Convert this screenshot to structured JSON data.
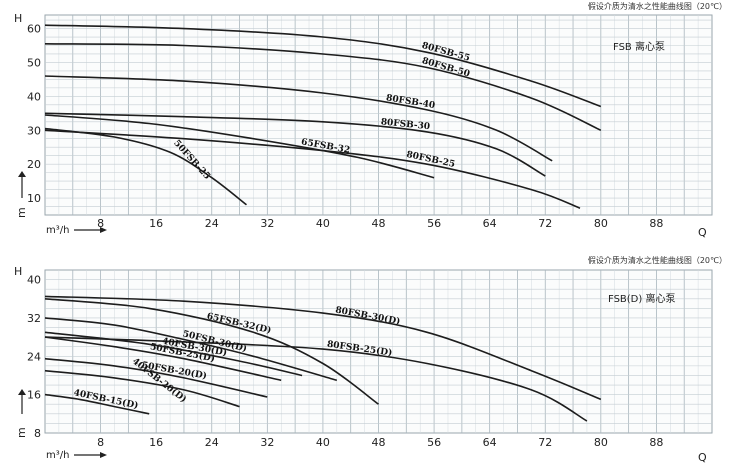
{
  "chart_data": [
    {
      "type": "line",
      "caption": "假设介质为清水之性能曲线图（20℃）",
      "title": "FSB 离心泵",
      "ylabel": "H",
      "yunit": "m",
      "xlabel": "Q",
      "xunit": "m³/h",
      "grid": true,
      "xlim": [
        0,
        96
      ],
      "ylim": [
        5,
        64
      ],
      "x_ticks": [
        8,
        16,
        24,
        32,
        40,
        48,
        56,
        64,
        72,
        80,
        88
      ],
      "y_ticks": [
        10,
        20,
        30,
        40,
        50,
        60
      ],
      "series": [
        {
          "name": "80FSB-55",
          "x": [
            0,
            20,
            40,
            55,
            70,
            80
          ],
          "y": [
            61,
            60,
            57.5,
            53,
            44.5,
            37
          ]
        },
        {
          "name": "80FSB-50",
          "x": [
            0,
            20,
            40,
            55,
            70,
            80
          ],
          "y": [
            55.5,
            55,
            52.5,
            48.5,
            39.5,
            30
          ]
        },
        {
          "name": "80FSB-40",
          "x": [
            0,
            20,
            40,
            55,
            65,
            73
          ],
          "y": [
            46,
            44.5,
            41,
            36,
            30,
            21
          ]
        },
        {
          "name": "80FSB-30",
          "x": [
            0,
            20,
            40,
            55,
            65,
            72
          ],
          "y": [
            35,
            34,
            32.5,
            29.5,
            24.5,
            16.5
          ]
        },
        {
          "name": "65FSB-32",
          "x": [
            0,
            15,
            30,
            45,
            56
          ],
          "y": [
            34.5,
            32,
            27.5,
            22,
            16
          ]
        },
        {
          "name": "80FSB-25",
          "x": [
            0,
            20,
            40,
            55,
            70,
            77
          ],
          "y": [
            30,
            27.5,
            24,
            20,
            12.5,
            7
          ]
        },
        {
          "name": "50FSB-25",
          "x": [
            0,
            10,
            18,
            24,
            29
          ],
          "y": [
            30.5,
            28,
            23.5,
            16,
            8
          ]
        }
      ]
    },
    {
      "type": "line",
      "caption": "假设介质为清水之性能曲线图（20℃）",
      "title": "FSB(D) 离心泵",
      "ylabel": "H",
      "yunit": "m",
      "xlabel": "Q",
      "xunit": "m³/h",
      "grid": true,
      "xlim": [
        0,
        96
      ],
      "ylim": [
        8,
        42
      ],
      "x_ticks": [
        8,
        16,
        24,
        32,
        40,
        48,
        56,
        64,
        72,
        80,
        88
      ],
      "y_ticks": [
        8,
        16,
        24,
        32,
        40
      ],
      "series": [
        {
          "name": "80FSB-30(D)",
          "x": [
            0,
            20,
            40,
            55,
            70,
            80
          ],
          "y": [
            36.5,
            35.5,
            33,
            29,
            21,
            15
          ]
        },
        {
          "name": "65FSB-32(D)",
          "x": [
            0,
            15,
            30,
            40,
            48
          ],
          "y": [
            36,
            34,
            29,
            22.5,
            14
          ]
        },
        {
          "name": "80FSB-25(D)",
          "x": [
            0,
            20,
            40,
            55,
            70,
            78
          ],
          "y": [
            28,
            27,
            25.5,
            22.5,
            17,
            10.5
          ]
        },
        {
          "name": "50FSB-30(D)",
          "x": [
            0,
            10,
            20,
            30,
            42
          ],
          "y": [
            32,
            30.5,
            27.5,
            24,
            19
          ]
        },
        {
          "name": "50FSB-25(D)",
          "x": [
            0,
            10,
            20,
            34
          ],
          "y": [
            28,
            26,
            23.5,
            19
          ]
        },
        {
          "name": "40FSB-30(D)",
          "x": [
            0,
            15,
            28,
            37
          ],
          "y": [
            29,
            26.5,
            23,
            20
          ]
        },
        {
          "name": "50FSB-20(D)",
          "x": [
            0,
            10,
            20,
            32
          ],
          "y": [
            23.5,
            22,
            19.5,
            15.5
          ]
        },
        {
          "name": "40FSB-20(D)",
          "x": [
            0,
            10,
            20,
            28
          ],
          "y": [
            21,
            19.5,
            17,
            13.5
          ]
        },
        {
          "name": "40FSB-15(D)",
          "x": [
            0,
            5,
            10,
            15
          ],
          "y": [
            16,
            15,
            13.5,
            12
          ]
        }
      ]
    }
  ]
}
